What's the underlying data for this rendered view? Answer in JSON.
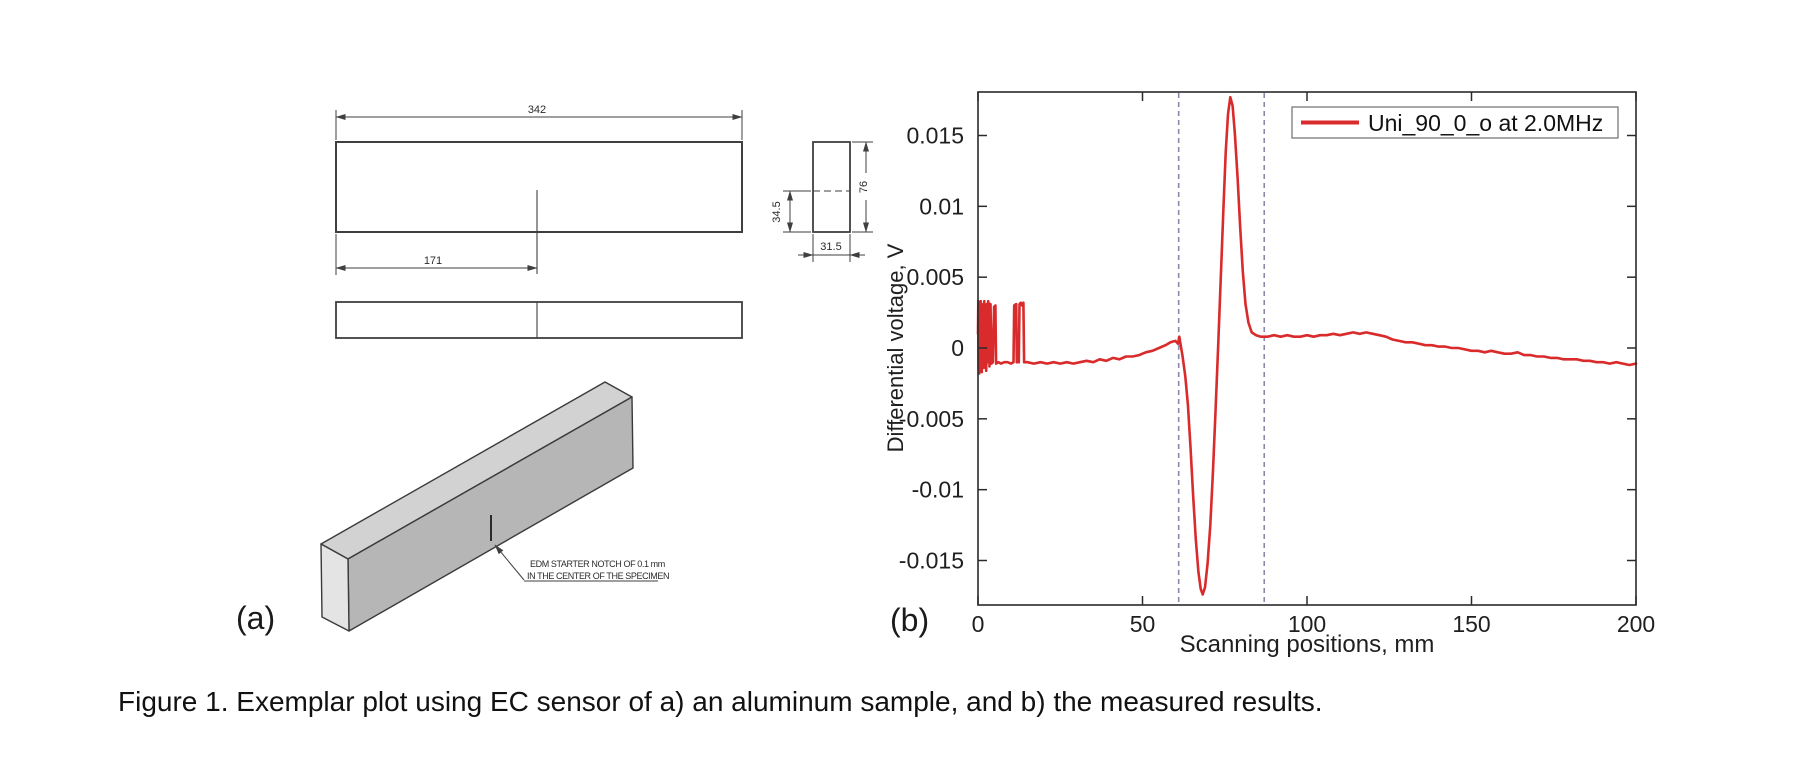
{
  "figure": {
    "caption": "Figure 1. Exemplar plot using EC sensor of a) an aluminum sample, and b) the measured results.",
    "panel_a_label": "(a)",
    "panel_b_label": "(b)"
  },
  "specimen_drawing": {
    "top_view_length_dim": "342",
    "notch_position_dim": "171",
    "section_depth_dim": "34.5",
    "section_height_dim": "76",
    "section_width_dim": "31.5",
    "notch_note_line1": "EDM STARTER NOTCH OF 0.1 mm",
    "notch_note_line2": "IN THE CENTER OF THE SPECIMEN"
  },
  "chart_data": {
    "type": "line",
    "title": "",
    "xlabel": "Scanning positions, mm",
    "ylabel": "Differential voltage, V",
    "xlim": [
      0,
      200
    ],
    "ylim": [
      -0.018,
      0.018
    ],
    "grid": false,
    "legend_position": "top-right",
    "x_ticks": [
      0,
      50,
      100,
      150,
      200
    ],
    "x_tick_labels": [
      "0",
      "50",
      "100",
      "150",
      "200"
    ],
    "y_ticks": [
      0.015,
      0.01,
      0.005,
      0,
      -0.005,
      -0.01,
      -0.015
    ],
    "y_tick_labels": [
      "0.015",
      "0.01",
      "0.005",
      "0",
      "-0.005",
      "-0.01",
      "-0.015"
    ],
    "reference_lines_x": [
      61,
      87
    ],
    "legend": {
      "entries": [
        {
          "label": "Uni_90_0_o at 2.0MHz",
          "color": "#d92b2b"
        }
      ]
    },
    "series": [
      {
        "name": "Uni_90_0_o at 2.0MHz",
        "color": "#d92b2b",
        "points": [
          [
            0,
            0.001
          ],
          [
            0.1,
            0.0033
          ],
          [
            0.15,
            -0.0015
          ],
          [
            0.25,
            0.003
          ],
          [
            0.35,
            -0.0018
          ],
          [
            0.45,
            0.0032
          ],
          [
            0.55,
            -0.001
          ],
          [
            0.65,
            0.0028
          ],
          [
            0.75,
            -0.0016
          ],
          [
            0.85,
            0.0033
          ],
          [
            0.95,
            -0.0012
          ],
          [
            1.05,
            0.003
          ],
          [
            1.15,
            -0.0017
          ],
          [
            1.3,
            0.0025
          ],
          [
            1.45,
            -0.001
          ],
          [
            1.6,
            0.0031
          ],
          [
            1.75,
            -0.0014
          ],
          [
            1.9,
            0.0033
          ],
          [
            2.1,
            -0.0012
          ],
          [
            2.3,
            0.0028
          ],
          [
            2.5,
            -0.0016
          ],
          [
            2.7,
            0.0031
          ],
          [
            2.9,
            -0.001
          ],
          [
            3.1,
            0.0033
          ],
          [
            3.3,
            0.003
          ],
          [
            3.5,
            -0.0013
          ],
          [
            3.8,
            0.0031
          ],
          [
            4.1,
            -0.0011
          ],
          [
            4.5,
            -0.001
          ],
          [
            4.9,
            0.0029
          ],
          [
            5.3,
            0.003
          ],
          [
            5.5,
            -0.0011
          ],
          [
            6.2,
            -0.001
          ],
          [
            7,
            -0.0011
          ],
          [
            8,
            -0.001
          ],
          [
            9,
            -0.001
          ],
          [
            10,
            -0.0011
          ],
          [
            10.8,
            -0.001
          ],
          [
            11,
            0.003
          ],
          [
            11.6,
            0.0031
          ],
          [
            11.8,
            -0.001
          ],
          [
            12.4,
            -0.001
          ],
          [
            12.6,
            0.0031
          ],
          [
            13,
            0.0032
          ],
          [
            13.4,
            0.003
          ],
          [
            13.8,
            0.0032
          ],
          [
            14,
            -0.001
          ],
          [
            15,
            -0.001
          ],
          [
            17,
            -0.0011
          ],
          [
            19,
            -0.001
          ],
          [
            21,
            -0.0011
          ],
          [
            23,
            -0.001
          ],
          [
            25,
            -0.0011
          ],
          [
            27,
            -0.001
          ],
          [
            29,
            -0.0011
          ],
          [
            31,
            -0.001
          ],
          [
            33,
            -0.0009
          ],
          [
            35,
            -0.001
          ],
          [
            37,
            -0.0008
          ],
          [
            39,
            -0.0009
          ],
          [
            41,
            -0.0007
          ],
          [
            43,
            -0.0008
          ],
          [
            45,
            -0.0006
          ],
          [
            47,
            -0.0006
          ],
          [
            49,
            -0.0005
          ],
          [
            51,
            -0.0003
          ],
          [
            53,
            -0.0002
          ],
          [
            55,
            0
          ],
          [
            57,
            0.0002
          ],
          [
            58.5,
            0.0004
          ],
          [
            60,
            0.0005
          ],
          [
            60.8,
            0.0003
          ],
          [
            61.2,
            0.0008
          ],
          [
            61.6,
            0.0002
          ],
          [
            62.2,
            -0.0006
          ],
          [
            63,
            -0.002
          ],
          [
            63.8,
            -0.004
          ],
          [
            64.6,
            -0.007
          ],
          [
            65.4,
            -0.0105
          ],
          [
            66.2,
            -0.0135
          ],
          [
            67,
            -0.0158
          ],
          [
            67.7,
            -0.017
          ],
          [
            68.3,
            -0.0174
          ],
          [
            69,
            -0.0169
          ],
          [
            69.8,
            -0.0152
          ],
          [
            70.6,
            -0.0125
          ],
          [
            71.4,
            -0.0088
          ],
          [
            72.2,
            -0.0045
          ],
          [
            73,
            0.0002
          ],
          [
            73.8,
            0.005
          ],
          [
            74.6,
            0.0098
          ],
          [
            75.3,
            0.0138
          ],
          [
            76,
            0.0165
          ],
          [
            76.7,
            0.0177
          ],
          [
            77.4,
            0.0171
          ],
          [
            78.1,
            0.0151
          ],
          [
            78.9,
            0.012
          ],
          [
            79.7,
            0.0085
          ],
          [
            80.5,
            0.0054
          ],
          [
            81.3,
            0.0031
          ],
          [
            82.2,
            0.0018
          ],
          [
            83.2,
            0.0011
          ],
          [
            84.5,
            0.0009
          ],
          [
            86,
            0.0008
          ],
          [
            88,
            0.0008
          ],
          [
            90,
            0.0009
          ],
          [
            92,
            0.0008
          ],
          [
            94,
            0.0009
          ],
          [
            96,
            0.0008
          ],
          [
            98,
            0.0008
          ],
          [
            100,
            0.0009
          ],
          [
            102,
            0.0008
          ],
          [
            104,
            0.0009
          ],
          [
            106,
            0.0009
          ],
          [
            108,
            0.001
          ],
          [
            110,
            0.0009
          ],
          [
            112,
            0.001
          ],
          [
            114,
            0.0011
          ],
          [
            116,
            0.001
          ],
          [
            118,
            0.0011
          ],
          [
            120,
            0.001
          ],
          [
            122,
            0.0009
          ],
          [
            124,
            0.0008
          ],
          [
            126,
            0.0006
          ],
          [
            128,
            0.0005
          ],
          [
            130,
            0.0004
          ],
          [
            132,
            0.0004
          ],
          [
            134,
            0.0003
          ],
          [
            136,
            0.0002
          ],
          [
            138,
            0.0002
          ],
          [
            140,
            0.0001
          ],
          [
            142,
            0.0001
          ],
          [
            144,
            0
          ],
          [
            146,
            0
          ],
          [
            148,
            -0.0001
          ],
          [
            150,
            -0.0002
          ],
          [
            152,
            -0.0002
          ],
          [
            154,
            -0.0003
          ],
          [
            156,
            -0.0002
          ],
          [
            158,
            -0.0003
          ],
          [
            160,
            -0.0004
          ],
          [
            162,
            -0.0004
          ],
          [
            164,
            -0.0003
          ],
          [
            166,
            -0.0005
          ],
          [
            168,
            -0.0005
          ],
          [
            170,
            -0.0006
          ],
          [
            172,
            -0.0006
          ],
          [
            174,
            -0.0007
          ],
          [
            176,
            -0.0007
          ],
          [
            178,
            -0.0008
          ],
          [
            180,
            -0.0008
          ],
          [
            182,
            -0.0008
          ],
          [
            184,
            -0.0009
          ],
          [
            186,
            -0.0009
          ],
          [
            188,
            -0.001
          ],
          [
            190,
            -0.001
          ],
          [
            192,
            -0.0011
          ],
          [
            194,
            -0.001
          ],
          [
            196,
            -0.0011
          ],
          [
            198,
            -0.0012
          ],
          [
            200,
            -0.0011
          ]
        ]
      }
    ]
  },
  "colors": {
    "curve_red": "#d92b2b",
    "reference_line": "#8a8aa8",
    "axis": "#2a2a2a",
    "drawing_line": "#3f3f3f",
    "bar_top_face": "#d2d2d2",
    "bar_front_face": "#b6b6b6",
    "bar_end_face": "#e4e4e4"
  }
}
